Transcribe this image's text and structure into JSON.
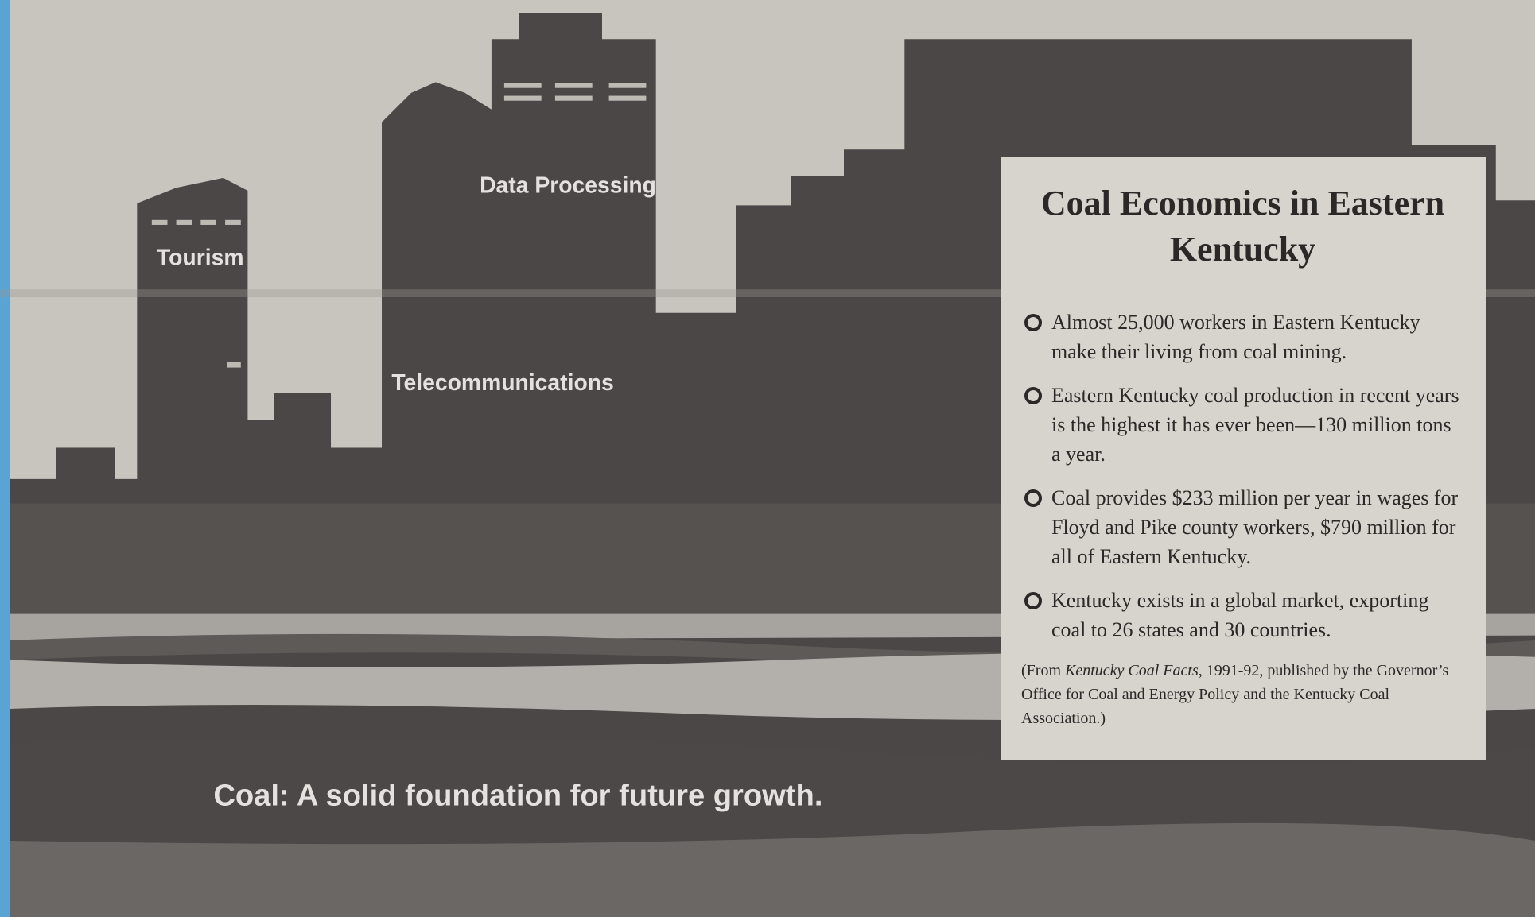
{
  "illustration": {
    "labels": {
      "tourism": "Tourism",
      "data_processing": "Data Processing",
      "telecommunications": "Telecommunications"
    },
    "tagline": "Coal: A solid foundation for future growth."
  },
  "panel": {
    "title": "Coal Economics in Eastern Kentucky",
    "bullets": [
      "Almost 25,000 workers in Eastern Kentucky make their living from coal mining.",
      "Eastern Kentucky coal production in recent years is the highest it has ever been—130 million tons a year.",
      "Coal provides $233 million per year in wages for Floyd and Pike county workers, $790 million for all of Eastern Kentucky.",
      "Kentucky exists in a global market, exporting coal to 26 states and 30 countries."
    ],
    "source": {
      "before": "(From",
      "title": "Kentucky Coal Facts",
      "after": ", 1991-92, published by the Governor’s Office for Coal and Energy Policy and the Kentucky Coal Association.)"
    }
  }
}
